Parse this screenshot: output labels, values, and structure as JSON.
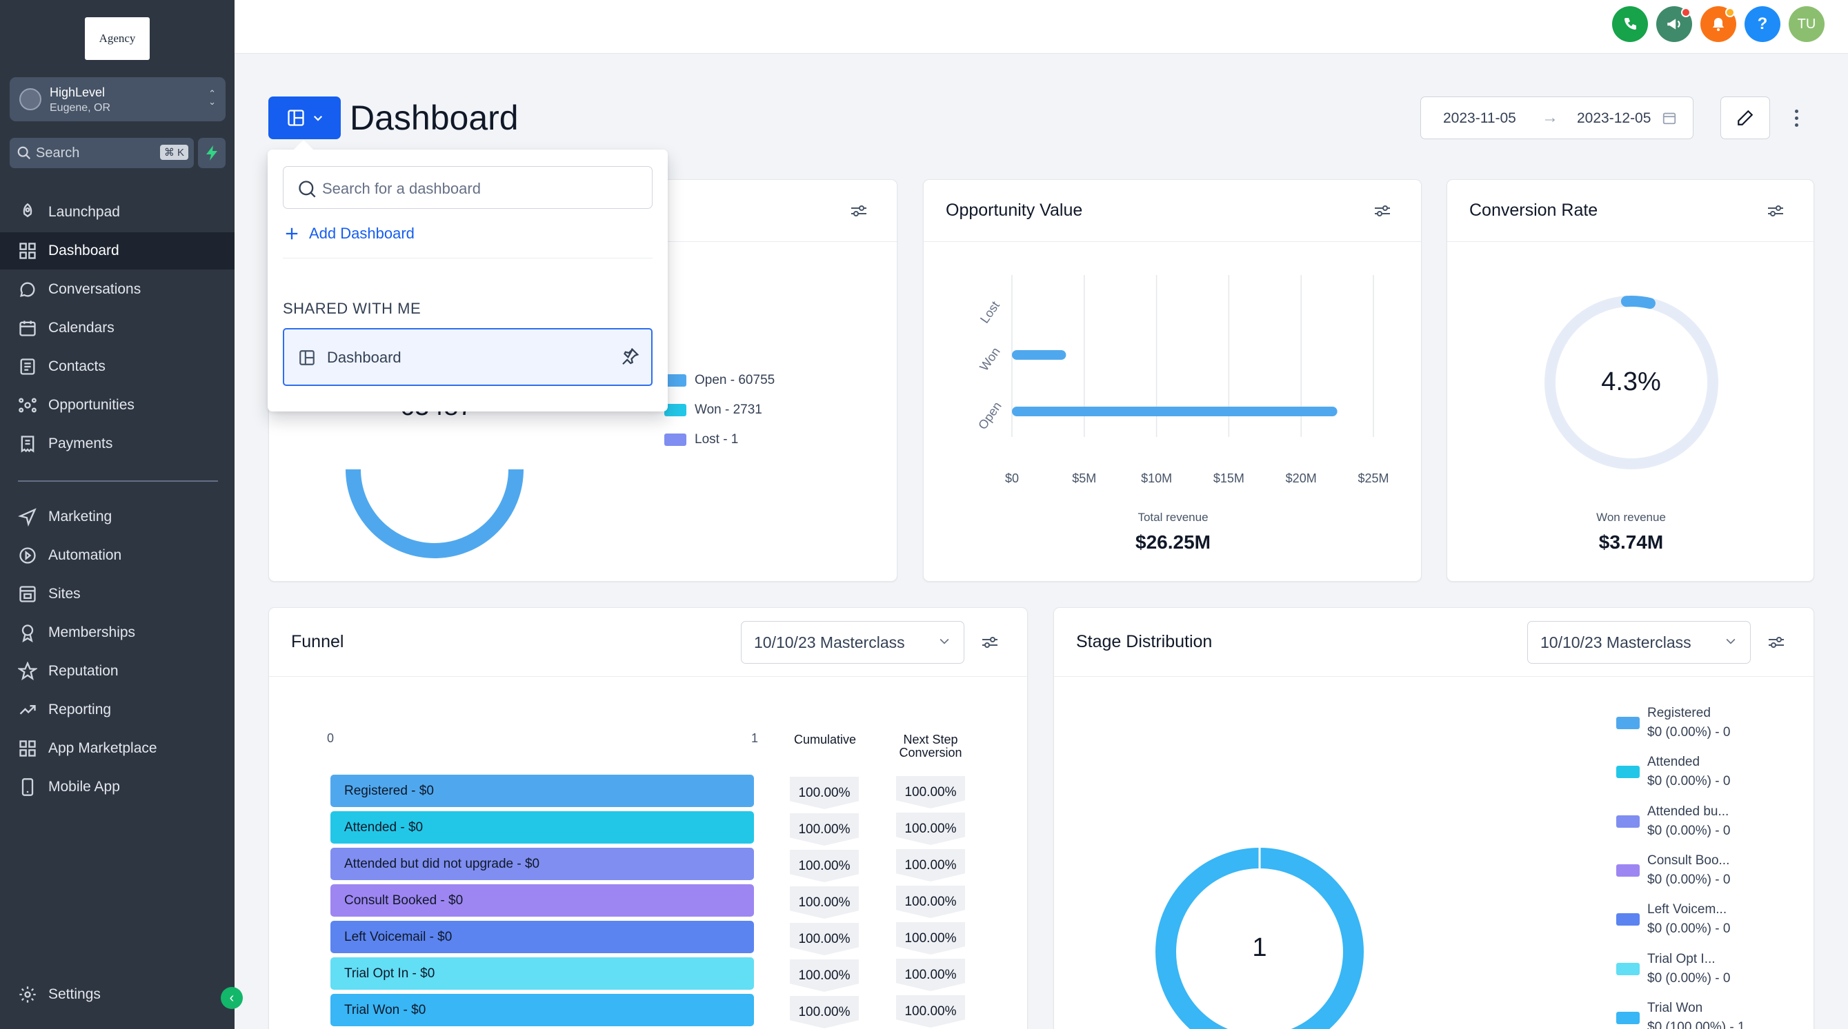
{
  "app": {
    "logo_text": "Agency",
    "account": {
      "name": "HighLevel",
      "location": "Eugene, OR"
    },
    "search": {
      "placeholder": "Search",
      "shortcut": "⌘ K"
    }
  },
  "sidebar": {
    "items": [
      {
        "label": "Launchpad",
        "icon": "rocket-icon"
      },
      {
        "label": "Dashboard",
        "icon": "grid-icon",
        "active": true
      },
      {
        "label": "Conversations",
        "icon": "chat-bubble-icon"
      },
      {
        "label": "Calendars",
        "icon": "calendar-icon"
      },
      {
        "label": "Contacts",
        "icon": "contact-card-icon"
      },
      {
        "label": "Opportunities",
        "icon": "network-icon"
      },
      {
        "label": "Payments",
        "icon": "receipt-icon"
      },
      {
        "label": "Marketing",
        "icon": "send-icon"
      },
      {
        "label": "Automation",
        "icon": "automation-icon"
      },
      {
        "label": "Sites",
        "icon": "website-icon"
      },
      {
        "label": "Memberships",
        "icon": "award-icon"
      },
      {
        "label": "Reputation",
        "icon": "star-icon"
      },
      {
        "label": "Reporting",
        "icon": "trend-up-icon"
      },
      {
        "label": "App Marketplace",
        "icon": "apps-icon"
      },
      {
        "label": "Mobile App",
        "icon": "phone-icon"
      }
    ],
    "settings_label": "Settings"
  },
  "topbar": {
    "user_initials": "TU",
    "colors": {
      "phone": "#16a34a",
      "megaphone": "#3f8a6b",
      "bell": "#f97316",
      "help": "#1d8cf8",
      "avatar": "#8bbf6f"
    }
  },
  "header": {
    "title": "Dashboard",
    "date_start": "2023-11-05",
    "date_end": "2023-12-05",
    "date_arrow": "→"
  },
  "dropdown": {
    "search_placeholder": "Search for a dashboard",
    "add_label": "Add Dashboard",
    "section_label": "SHARED WITH ME",
    "items": [
      {
        "label": "Dashboard"
      }
    ]
  },
  "cards": {
    "opportunity_status": {
      "center_value": "63487",
      "legend": [
        {
          "label": "Open - 60755",
          "color": "#4fa8ee"
        },
        {
          "label": "Won - 2731",
          "color": "#22c7e8"
        },
        {
          "label": "Lost - 1",
          "color": "#7f8ef0"
        }
      ]
    },
    "opportunity_value": {
      "title": "Opportunity Value",
      "caption": "Total revenue",
      "total": "$26.25M"
    },
    "conversion_rate": {
      "title": "Conversion Rate",
      "value": "4.3%",
      "caption": "Won revenue",
      "total": "$3.74M"
    },
    "funnel": {
      "title": "Funnel",
      "select_value": "10/10/23 Masterclass",
      "axis_min": "0",
      "axis_max": "1",
      "col_cumulative": "Cumulative",
      "col_next_step": "Next Step Conversion",
      "stages": [
        {
          "label": "Registered - $0",
          "cumulative": "100.00%",
          "next": "100.00%",
          "color": "#4fa8ee"
        },
        {
          "label": "Attended - $0",
          "cumulative": "100.00%",
          "next": "100.00%",
          "color": "#22c7e8"
        },
        {
          "label": "Attended but did not upgrade - $0",
          "cumulative": "100.00%",
          "next": "100.00%",
          "color": "#7f8ef0"
        },
        {
          "label": "Consult Booked - $0",
          "cumulative": "100.00%",
          "next": "100.00%",
          "color": "#9d86f2"
        },
        {
          "label": "Left Voicemail - $0",
          "cumulative": "100.00%",
          "next": "100.00%",
          "color": "#5b84f0"
        },
        {
          "label": "Trial Opt In - $0",
          "cumulative": "100.00%",
          "next": "100.00%",
          "color": "#62def5"
        },
        {
          "label": "Trial Won - $0",
          "cumulative": "100.00%",
          "next": "100.00%",
          "color": "#38b6f5"
        }
      ]
    },
    "stage_distribution": {
      "title": "Stage Distribution",
      "select_value": "10/10/23 Masterclass",
      "center_value": "1",
      "legend": [
        {
          "name": "Registered",
          "value": "$0 (0.00%) - 0",
          "color": "#4fa8ee"
        },
        {
          "name": "Attended",
          "value": "$0 (0.00%) - 0",
          "color": "#22c7e8"
        },
        {
          "name": "Attended bu...",
          "value": "$0 (0.00%) - 0",
          "color": "#7f8ef0"
        },
        {
          "name": "Consult Boo...",
          "value": "$0 (0.00%) - 0",
          "color": "#9d86f2"
        },
        {
          "name": "Left Voicem...",
          "value": "$0 (0.00%) - 0",
          "color": "#5b84f0"
        },
        {
          "name": "Trial Opt I...",
          "value": "$0 (0.00%) - 0",
          "color": "#62def5"
        },
        {
          "name": "Trial Won",
          "value": "$0 (100.00%) - 1",
          "color": "#38b6f5"
        }
      ]
    }
  },
  "chart_data": [
    {
      "type": "bar",
      "orientation": "horizontal",
      "title": "Opportunity Value",
      "categories": [
        "Lost",
        "Won",
        "Open"
      ],
      "values": [
        0,
        3.74,
        22.5
      ],
      "unit": "$M",
      "xlim": [
        0,
        25
      ],
      "xticks": [
        "$0",
        "$5M",
        "$10M",
        "$15M",
        "$20M",
        "$25M"
      ],
      "grid": true,
      "color": "#4fa8ee"
    },
    {
      "type": "pie",
      "title": "Conversion Rate",
      "slices": [
        {
          "label": "Won",
          "value": 4.3
        },
        {
          "label": "Other",
          "value": 95.7
        }
      ],
      "colors": [
        "#4fa8ee",
        "#e6ecf7"
      ]
    },
    {
      "type": "pie",
      "categories": [
        "Open",
        "Won",
        "Lost"
      ],
      "values": [
        60755,
        2731,
        1
      ],
      "colors": [
        "#4fa8ee",
        "#22c7e8",
        "#7f8ef0"
      ]
    },
    {
      "type": "pie",
      "title": "Stage Distribution",
      "categories": [
        "Registered",
        "Attended",
        "Attended but did not upgrade",
        "Consult Booked",
        "Left Voicemail",
        "Trial Opt In",
        "Trial Won"
      ],
      "values": [
        0,
        0,
        0,
        0,
        0,
        0,
        1
      ]
    }
  ]
}
